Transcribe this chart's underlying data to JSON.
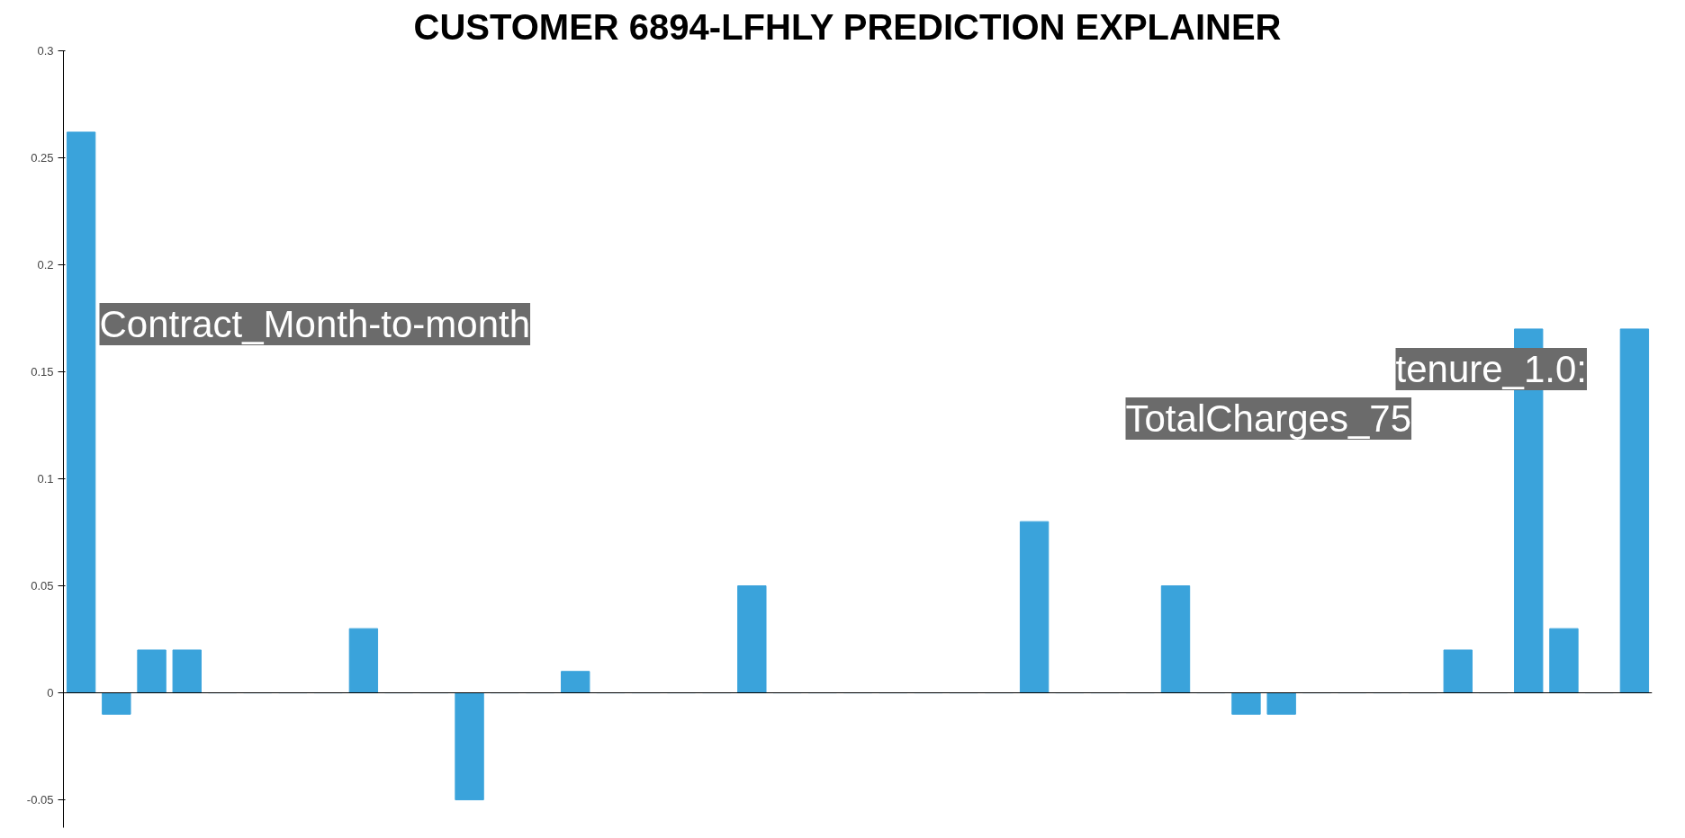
{
  "chart_data": {
    "type": "bar",
    "title": "CUSTOMER 6894-LFHLY   PREDICTION EXPLAINER",
    "categories": [
      null,
      null,
      null,
      null,
      null,
      null,
      null,
      null,
      null,
      null,
      null,
      null,
      null,
      null,
      null,
      null,
      null,
      null,
      null,
      null,
      null,
      null,
      null,
      null,
      null,
      null,
      null,
      null,
      null,
      null,
      null,
      null,
      null,
      null,
      null,
      null,
      null,
      null,
      null,
      null,
      null,
      null,
      null,
      null,
      null
    ],
    "values": [
      0.262,
      -0.01,
      0.02,
      0.02,
      0,
      0,
      0,
      0,
      0.03,
      0,
      0,
      -0.05,
      0,
      0,
      0.01,
      0,
      0,
      0,
      0,
      0.05,
      0,
      0,
      0,
      0,
      0,
      0,
      0,
      0.08,
      0,
      0,
      0,
      0.05,
      0,
      -0.01,
      -0.01,
      0,
      0,
      0,
      0,
      0.02,
      0,
      0.17,
      0.03,
      0,
      0.17
    ],
    "color": "#3aa3db",
    "ylim": [
      -0.063,
      0.3
    ],
    "yticks": [
      -0.05,
      0,
      0.05,
      0.1,
      0.15,
      0.2,
      0.25,
      0.3
    ],
    "tick_labels": "y",
    "annotations": [
      "Contract_Month-to-month",
      "TotalCharges_75",
      "tenure_1.0:"
    ]
  }
}
